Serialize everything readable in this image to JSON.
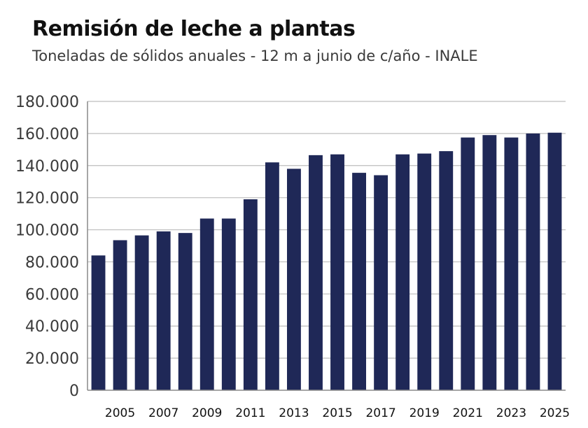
{
  "header": {
    "title": "Remisión de leche a plantas",
    "subtitle": "Toneladas de sólidos anuales - 12 m a junio  de c/año - INALE"
  },
  "colors": {
    "bar": "#1f2857",
    "grid": "#bdbdbd",
    "axis": "#8a8a8a"
  },
  "chart_data": {
    "type": "bar",
    "title": "Remisión de leche a plantas",
    "subtitle": "Toneladas de sólidos anuales - 12 m a junio  de c/año - INALE",
    "categories": [
      "2004",
      "2005",
      "2006",
      "2007",
      "2008",
      "2009",
      "2010",
      "2011",
      "2012",
      "2013",
      "2014",
      "2015",
      "2016",
      "2017",
      "2018",
      "2019",
      "2020",
      "2021",
      "2022",
      "2023",
      "2024",
      "2025"
    ],
    "x_tick_labels": [
      "",
      "2005",
      "",
      "2007",
      "",
      "2009",
      "",
      "2011",
      "",
      "2013",
      "",
      "2015",
      "",
      "2017",
      "",
      "2019",
      "",
      "2021",
      "",
      "2023",
      "",
      "2025"
    ],
    "values": [
      84000,
      93500,
      96500,
      99000,
      98000,
      107000,
      107000,
      119000,
      142000,
      138000,
      146500,
      147000,
      135500,
      134000,
      147000,
      147500,
      149000,
      157500,
      159000,
      157500,
      160000,
      160500
    ],
    "ylim": [
      0,
      180000
    ],
    "y_ticks": [
      0,
      20000,
      40000,
      60000,
      80000,
      100000,
      120000,
      140000,
      160000,
      180000
    ],
    "y_tick_labels": [
      "0",
      "20.000",
      "40.000",
      "60.000",
      "80.000",
      "100.000",
      "120.000",
      "140.000",
      "160.000",
      "180.000"
    ],
    "xlabel": "",
    "ylabel": "",
    "grid": true,
    "legend": "none"
  }
}
